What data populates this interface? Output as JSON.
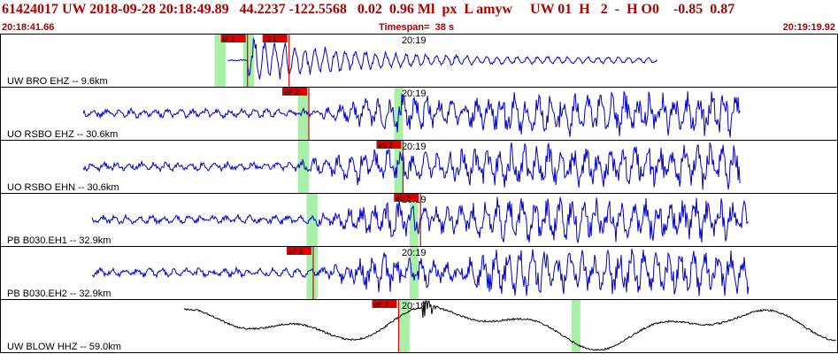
{
  "header": {
    "title": "61424017 UW 2018-09-28 20:18:49.89   44.2237 -122.5568   0.02  0.96 Ml  px  L amyw     UW 01  H   2  -  H O0    -0.85  0.87",
    "start_time": "20:18:41.66",
    "timespan": "Timespan=  38 s",
    "end_time": "20:19:19.92"
  },
  "colors": {
    "trace_blue": "#0000cc",
    "trace_black": "#000000",
    "window_green": "#a8f0a8",
    "pick_red": "#dd0000",
    "header_red": "#b00000"
  },
  "chart_data": {
    "type": "line",
    "x_unit": "seconds",
    "x_range": [
      0,
      38.26
    ],
    "minute_mark": {
      "label": "20:19",
      "t": 18.34
    },
    "traces": [
      {
        "label": "UW BRO EHZ -- 9.6km",
        "color": "blue",
        "signal": [
          10.4,
          30.0
        ],
        "onset": 11.3,
        "style": "local",
        "picks": [
          {
            "label": "iP 1",
            "t": 11.3
          },
          {
            "label": "iS 1",
            "t": 13.2
          }
        ],
        "windows": [
          [
            9.8,
            10.3
          ],
          [
            11.1,
            11.6
          ]
        ]
      },
      {
        "label": "UO RSBO EHZ -- 30.6km",
        "color": "blue",
        "signal": [
          3.8,
          33.8
        ],
        "onset": 14.7,
        "style": "regional",
        "picks": [
          {
            "label": "eP 2",
            "t": 14.1
          }
        ],
        "windows": [
          [
            13.6,
            14.1
          ],
          [
            18.0,
            18.4
          ]
        ]
      },
      {
        "label": "UO RSBO EHN -- 30.6km",
        "color": "blue",
        "signal": [
          3.8,
          33.8
        ],
        "onset": 13.6,
        "style": "regional",
        "picks": [
          {
            "label": "eS 2",
            "t": 18.4
          }
        ],
        "windows": [
          [
            13.6,
            14.1
          ],
          [
            18.0,
            18.4
          ]
        ]
      },
      {
        "label": "PB B030.EH1 -- 32.9km",
        "color": "blue",
        "signal": [
          4.2,
          34.2
        ],
        "onset": 14.4,
        "style": "regional",
        "picks": [
          {
            "label": "eS 2",
            "t": 19.2
          }
        ],
        "windows": [
          [
            14.0,
            14.5
          ],
          [
            18.7,
            19.1
          ]
        ]
      },
      {
        "label": "PB B030.EH2 -- 32.9km",
        "color": "blue",
        "signal": [
          4.2,
          34.2
        ],
        "onset": 14.4,
        "style": "regional",
        "picks": [
          {
            "label": "eP 2",
            "t": 14.3
          }
        ],
        "windows": [
          [
            14.0,
            14.5
          ],
          [
            18.7,
            19.1
          ]
        ]
      },
      {
        "label": "UW BLOW HHZ -- 59.0km",
        "color": "black",
        "signal": [
          8.4,
          38.2
        ],
        "onset": 19.3,
        "style": "long_period",
        "picks": [
          {
            "label": "eP 2",
            "t": 18.2
          }
        ],
        "windows": [
          [
            18.2,
            18.7
          ],
          [
            26.1,
            26.5
          ]
        ]
      }
    ]
  }
}
